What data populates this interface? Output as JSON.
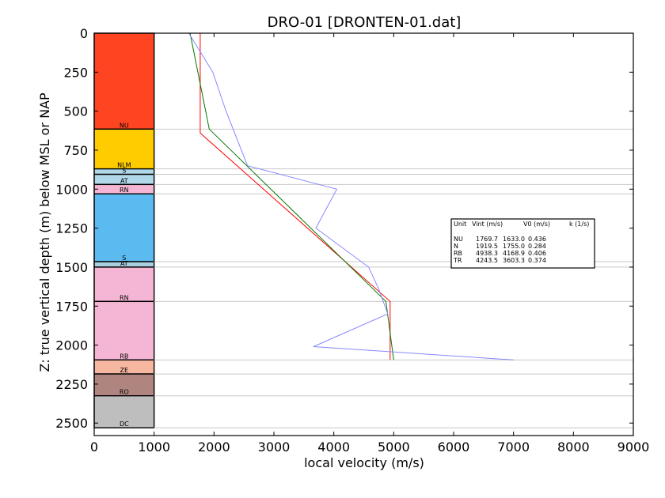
{
  "chart_data": {
    "type": "line",
    "title": "DRO-01 [DRONTEN-01.dat]",
    "xlabel": "local velocity (m/s)",
    "ylabel": "Z: true vertical depth (m) below MSL or NAP",
    "xlim": [
      0,
      9000
    ],
    "ylim": [
      2580,
      0
    ],
    "x_ticks": [
      0,
      1000,
      2000,
      3000,
      4000,
      5000,
      6000,
      7000,
      8000,
      9000
    ],
    "y_ticks": [
      0,
      250,
      500,
      750,
      1000,
      1250,
      1500,
      1750,
      2000,
      2250,
      2500
    ],
    "boundaries": [
      615,
      870,
      905,
      970,
      1030,
      1465,
      1500,
      1720,
      2095,
      2185,
      2325,
      2530
    ],
    "units": [
      {
        "label": "NU",
        "top": 0,
        "bottom": 615,
        "color": "#ff4422"
      },
      {
        "label": "NLM",
        "top": 615,
        "bottom": 870,
        "color": "#ffcc00"
      },
      {
        "label": "S",
        "top": 870,
        "bottom": 905,
        "color": "#b0d8e8"
      },
      {
        "label": "AT",
        "top": 905,
        "bottom": 970,
        "color": "#b0d8e8"
      },
      {
        "label": "RN",
        "top": 970,
        "bottom": 1030,
        "color": "#f4b6d4"
      },
      {
        "label": "S",
        "top": 1030,
        "bottom": 1465,
        "color": "#5bbaf0"
      },
      {
        "label": "AT",
        "top": 1465,
        "bottom": 1500,
        "color": "#a8d0e0"
      },
      {
        "label": "RN",
        "top": 1500,
        "bottom": 1720,
        "color": "#f4b6d4"
      },
      {
        "label": "RB",
        "top": 1720,
        "bottom": 2095,
        "color": "#f4b6d4"
      },
      {
        "label": "ZE",
        "top": 2095,
        "bottom": 2185,
        "color": "#f5b7a0"
      },
      {
        "label": "RO",
        "top": 2185,
        "bottom": 2325,
        "color": "#b08580"
      },
      {
        "label": "DC",
        "top": 2325,
        "bottom": 2530,
        "color": "#bebebe"
      }
    ],
    "column_x_range": [
      0,
      1000
    ],
    "series": [
      {
        "color": "#ff0000",
        "x": [
          1770,
          1770,
          1770,
          4940,
          4940
        ],
        "y": [
          0,
          615,
          640,
          1720,
          2095
        ]
      },
      {
        "color": "#007700",
        "x": [
          1600,
          1920,
          1920,
          4870,
          5000
        ],
        "y": [
          0,
          615,
          615,
          1720,
          2095
        ]
      },
      {
        "color": "#8888ff",
        "x": [
          1580,
          1980,
          2200,
          2560,
          4050,
          3700,
          4580,
          4750,
          4900,
          3660,
          7000
        ],
        "y": [
          0,
          250,
          500,
          850,
          1000,
          1250,
          1500,
          1640,
          1800,
          2010,
          2095
        ]
      }
    ],
    "legend": {
      "placement": "right",
      "header": [
        "Unit",
        "Vint (m/s)",
        "V0 (m/s)",
        "k (1/s)"
      ],
      "rows": [
        {
          "unit": "NU",
          "vint": "1769.7",
          "v0": "1633.0",
          "k": "0.436"
        },
        {
          "unit": "N",
          "vint": "1919.5",
          "v0": "1755.0",
          "k": "0.284"
        },
        {
          "unit": "RB",
          "vint": "4938.3",
          "v0": "4168.9",
          "k": "0.406"
        },
        {
          "unit": "TR",
          "vint": "4243.5",
          "v0": "3603.3",
          "k": "0.374"
        }
      ]
    }
  }
}
